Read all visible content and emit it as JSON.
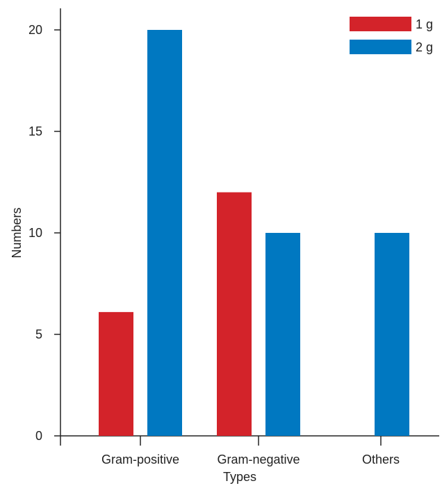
{
  "chart_data": {
    "type": "bar",
    "categories": [
      "Gram-positive",
      "Gram-negative",
      "Others"
    ],
    "series": [
      {
        "name": "1 g",
        "color": "#d3232a",
        "values": [
          6.1,
          12,
          0
        ]
      },
      {
        "name": "2 g",
        "color": "#0078c1",
        "values": [
          20,
          10,
          10
        ]
      }
    ],
    "xlabel": "Types",
    "ylabel": "Numbers",
    "ylim": [
      0,
      20
    ],
    "yticks": [
      "0",
      "5",
      "10",
      "15",
      "20"
    ],
    "grid": false,
    "legend": "top-right"
  }
}
